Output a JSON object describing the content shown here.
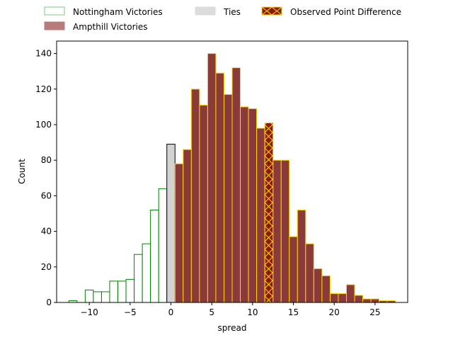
{
  "chart_data": {
    "type": "bar",
    "title": "",
    "xlabel": "spread",
    "ylabel": "Count",
    "xlim": [
      -14,
      29
    ],
    "ylim": [
      0,
      147
    ],
    "x_ticks": [
      -10,
      -5,
      0,
      5,
      10,
      15,
      20,
      25
    ],
    "y_ticks": [
      0,
      20,
      40,
      60,
      80,
      100,
      120,
      140
    ],
    "grid": false,
    "legend_position": "top, above plot (3 columns)",
    "bin_width": 1,
    "series": [
      {
        "name": "Nottingham Victories",
        "style": "outline",
        "edge_color": "#008000",
        "legend_edge_color": "#7fc97f",
        "bins": [
          {
            "x": -12,
            "count": 1
          },
          {
            "x": -10,
            "count": 7
          },
          {
            "x": -9,
            "count": 6
          },
          {
            "x": -8,
            "count": 6
          },
          {
            "x": -7,
            "count": 12
          },
          {
            "x": -6,
            "count": 12
          },
          {
            "x": -5,
            "count": 13
          },
          {
            "x": -4,
            "count": 27
          },
          {
            "x": -3,
            "count": 33
          },
          {
            "x": -2,
            "count": 52
          },
          {
            "x": -1,
            "count": 64
          }
        ]
      },
      {
        "name": "Ties",
        "style": "filled",
        "fill_color": "#d3d3d3",
        "edge_color": "#000000",
        "legend_fill_color": "#dcdcdc",
        "bins": [
          {
            "x": 0,
            "count": 89
          }
        ]
      },
      {
        "name": "Ampthill Victories",
        "style": "filled",
        "fill_color": "#8b3a3a",
        "edge_color": "#ffd700",
        "legend_fill_color": "#b87b7b",
        "bins": [
          {
            "x": 1,
            "count": 78
          },
          {
            "x": 2,
            "count": 86
          },
          {
            "x": 3,
            "count": 120
          },
          {
            "x": 4,
            "count": 111
          },
          {
            "x": 5,
            "count": 140
          },
          {
            "x": 6,
            "count": 129
          },
          {
            "x": 7,
            "count": 117
          },
          {
            "x": 8,
            "count": 132
          },
          {
            "x": 9,
            "count": 110
          },
          {
            "x": 10,
            "count": 109
          },
          {
            "x": 11,
            "count": 98
          },
          {
            "x": 12,
            "count": 101
          },
          {
            "x": 13,
            "count": 80
          },
          {
            "x": 14,
            "count": 80
          },
          {
            "x": 15,
            "count": 37
          },
          {
            "x": 16,
            "count": 52
          },
          {
            "x": 17,
            "count": 33
          },
          {
            "x": 18,
            "count": 19
          },
          {
            "x": 19,
            "count": 15
          },
          {
            "x": 20,
            "count": 5
          },
          {
            "x": 21,
            "count": 5
          },
          {
            "x": 22,
            "count": 10
          },
          {
            "x": 23,
            "count": 4
          },
          {
            "x": 24,
            "count": 2
          },
          {
            "x": 25,
            "count": 2
          },
          {
            "x": 26,
            "count": 1
          },
          {
            "x": 27,
            "count": 1
          }
        ]
      },
      {
        "name": "Observed Point Difference",
        "style": "hatched",
        "fill_color": "#8b1a0e",
        "edge_color": "#ffd700",
        "hatch": "x",
        "bins": [
          {
            "x": 12,
            "count": 101
          }
        ]
      }
    ]
  }
}
